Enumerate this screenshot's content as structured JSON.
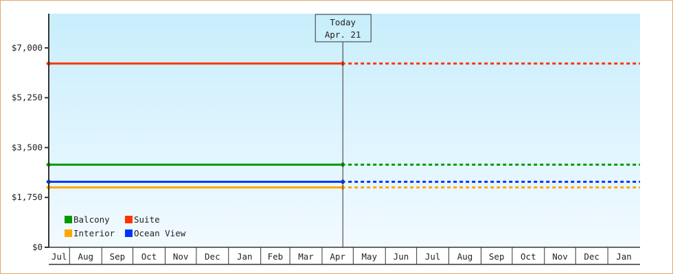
{
  "chart_data": {
    "type": "line",
    "title": "",
    "xlabel": "",
    "ylabel": "",
    "ylim": [
      0,
      8200
    ],
    "y_ticks": [
      {
        "value": 0,
        "label": "$0"
      },
      {
        "value": 1750,
        "label": "$1,750"
      },
      {
        "value": 3500,
        "label": "$3,500"
      },
      {
        "value": 5250,
        "label": "$5,250"
      },
      {
        "value": 7000,
        "label": "$7,000"
      }
    ],
    "x_months": [
      "Jul",
      "Aug",
      "Sep",
      "Oct",
      "Nov",
      "Dec",
      "Jan",
      "Feb",
      "Mar",
      "Apr",
      "May",
      "Jun",
      "Jul",
      "Aug",
      "Sep",
      "Oct",
      "Nov",
      "Dec",
      "Jan"
    ],
    "today_marker": {
      "line1": "Today",
      "line2": "Apr. 21"
    },
    "grid": false,
    "legend_placement": "bottom-left",
    "background": {
      "top": "#c8eefc",
      "bottom": "#f2faff"
    },
    "series": [
      {
        "name": "Balcony",
        "color": "#009900",
        "value_history": 2900,
        "value_projected": 2900
      },
      {
        "name": "Suite",
        "color": "#ff3300",
        "value_history": 6450,
        "value_projected": 6450
      },
      {
        "name": "Interior",
        "color": "#ffa500",
        "value_history": 2100,
        "value_projected": 2100
      },
      {
        "name": "Ocean View",
        "color": "#0033ff",
        "value_history": 2300,
        "value_projected": 2300
      }
    ]
  }
}
